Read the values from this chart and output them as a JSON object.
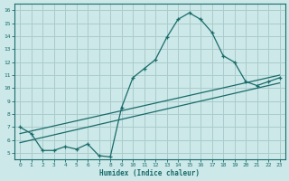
{
  "xlabel": "Humidex (Indice chaleur)",
  "ylabel": "",
  "xlim": [
    -0.5,
    23.5
  ],
  "ylim": [
    4.5,
    16.5
  ],
  "xticks": [
    0,
    1,
    2,
    3,
    4,
    5,
    6,
    7,
    8,
    9,
    10,
    11,
    12,
    13,
    14,
    15,
    16,
    17,
    18,
    19,
    20,
    21,
    22,
    23
  ],
  "yticks": [
    5,
    6,
    7,
    8,
    9,
    10,
    11,
    12,
    13,
    14,
    15,
    16
  ],
  "bg_color": "#cce8e8",
  "line_color": "#1a6b6b",
  "grid_color": "#aacccc",
  "series1_x": [
    0,
    1,
    2,
    3,
    4,
    5,
    6,
    7,
    8,
    9,
    10,
    11,
    12,
    13,
    14,
    15,
    16,
    17,
    18,
    19,
    20,
    21,
    22,
    23
  ],
  "series1_y": [
    7.0,
    6.5,
    5.2,
    5.2,
    5.5,
    5.3,
    5.7,
    4.8,
    4.7,
    8.5,
    10.8,
    11.5,
    12.2,
    13.9,
    15.3,
    15.8,
    15.3,
    14.3,
    12.5,
    12.0,
    10.5,
    10.2,
    10.5,
    10.8
  ],
  "series2_x": [
    0,
    23
  ],
  "series2_y": [
    6.5,
    11.0
  ],
  "series3_x": [
    0,
    23
  ],
  "series3_y": [
    5.8,
    10.4
  ]
}
